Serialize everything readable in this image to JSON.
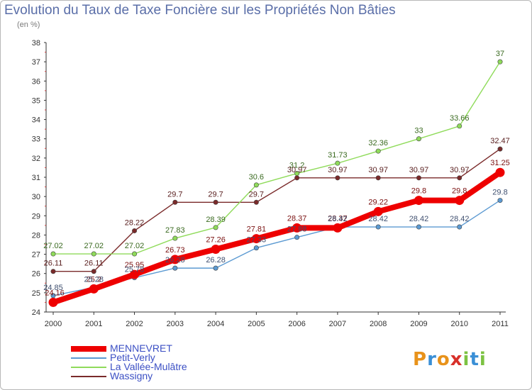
{
  "header": {
    "title": "Evolution du Taux de Taxe Foncière sur les Propriétés Non Bâties",
    "subtitle": "(en %)"
  },
  "logo": {
    "letters": [
      "P",
      "r",
      "o",
      "x",
      "i",
      "t",
      "i"
    ],
    "colors": [
      "#e8921a",
      "#3a8fd6",
      "#e8921a",
      "#d8302a",
      "#7cc242",
      "#3a8fd6",
      "#7cc242"
    ]
  },
  "chart_data": {
    "type": "line",
    "title": "Evolution du Taux de Taxe Foncière sur les Propriétés Non Bâties",
    "ylabel": "(en %)",
    "xlabel": "",
    "x": [
      "2000",
      "2001",
      "2002",
      "2003",
      "2004",
      "2005",
      "2006",
      "2007",
      "2008",
      "2009",
      "2010",
      "2011"
    ],
    "ylim": [
      24,
      38
    ],
    "yticks": [
      "24",
      "25",
      "26",
      "27",
      "28",
      "29",
      "30",
      "31",
      "32",
      "33",
      "34",
      "35",
      "36",
      "37",
      "38"
    ],
    "grid": false,
    "legend_position": "bottom-left",
    "series": [
      {
        "name": "MENNEVRET",
        "color": "#ee0000",
        "values": [
          24.5,
          25.2,
          25.95,
          26.73,
          27.26,
          27.81,
          28.37,
          28.37,
          29.22,
          29.8,
          29.8,
          31.25
        ],
        "labels": [
          "",
          "25.2",
          "25.95",
          "26.73",
          "27.26",
          "27.81",
          "28.37",
          "28.37",
          "29.22",
          "29.8",
          "29.8",
          "31.25"
        ]
      },
      {
        "name": "Petit-Verly",
        "color": "#5c9ad2",
        "values": [
          24.85,
          25.28,
          25.78,
          26.28,
          26.28,
          27.33,
          27.88,
          28.42,
          28.42,
          28.42,
          28.42,
          29.8
        ],
        "labels": [
          "24.85",
          "25.28",
          "25.78",
          "26.28",
          "26.28",
          "27.33",
          "27.88",
          "28.42",
          "28.42",
          "28.42",
          "28.42",
          "29.8"
        ]
      },
      {
        "name": "La Vallée-Mulâtre",
        "color": "#8fdb5a",
        "values": [
          27.02,
          27.02,
          27.02,
          27.83,
          28.39,
          30.6,
          31.2,
          31.73,
          32.36,
          33.0,
          33.66,
          37.0
        ],
        "labels": [
          "27.02",
          "27.02",
          "27.02",
          "27.83",
          "28.39",
          "30.6",
          "31.2",
          "31.73",
          "32.36",
          "33",
          "33.66",
          "37"
        ]
      },
      {
        "name": "Wassigny",
        "color": "#7a2a2a",
        "values": [
          26.11,
          26.11,
          28.22,
          29.7,
          29.7,
          29.7,
          30.97,
          30.97,
          30.97,
          30.97,
          30.97,
          32.47
        ],
        "labels": [
          "26.11",
          "26.11",
          "28.22",
          "29.7",
          "29.7",
          "29.7",
          "30.97",
          "30.97",
          "30.97",
          "30.97",
          "30.97",
          "32.47"
        ]
      }
    ],
    "extra_labels": [
      "24.16"
    ]
  }
}
